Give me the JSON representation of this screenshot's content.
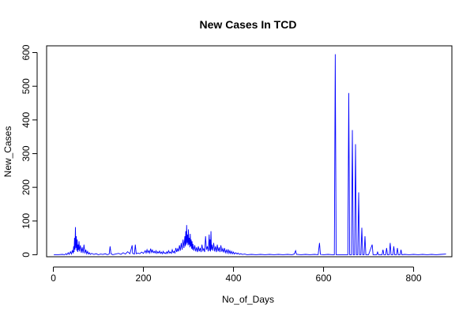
{
  "chart_data": {
    "type": "line",
    "title": "New Cases In TCD",
    "xlabel": "No_of_Days",
    "ylabel": "New_Cases",
    "xlim": [
      -15,
      885
    ],
    "ylim": [
      -6,
      620
    ],
    "x_ticks": [
      0,
      200,
      400,
      600,
      800
    ],
    "y_ticks": [
      0,
      100,
      200,
      300,
      400,
      500,
      600
    ],
    "x_tick_labels": [
      "0",
      "200",
      "400",
      "600",
      "800"
    ],
    "y_tick_labels": [
      "0",
      "100",
      "200",
      "300",
      "400",
      "500",
      "600"
    ],
    "grid": false,
    "legend": "none",
    "series": [
      {
        "color": "#0000ff",
        "points": [
          [
            1,
            0
          ],
          [
            10,
            0
          ],
          [
            20,
            1
          ],
          [
            25,
            0
          ],
          [
            28,
            3
          ],
          [
            30,
            0
          ],
          [
            33,
            6
          ],
          [
            35,
            1
          ],
          [
            38,
            9
          ],
          [
            40,
            2
          ],
          [
            42,
            12
          ],
          [
            44,
            4
          ],
          [
            45,
            25
          ],
          [
            46,
            8
          ],
          [
            47,
            50
          ],
          [
            48,
            15
          ],
          [
            49,
            82
          ],
          [
            50,
            20
          ],
          [
            51,
            55
          ],
          [
            52,
            12
          ],
          [
            53,
            45
          ],
          [
            54,
            8
          ],
          [
            55,
            30
          ],
          [
            56,
            14
          ],
          [
            57,
            40
          ],
          [
            58,
            10
          ],
          [
            60,
            28
          ],
          [
            62,
            6
          ],
          [
            64,
            22
          ],
          [
            66,
            5
          ],
          [
            68,
            30
          ],
          [
            70,
            4
          ],
          [
            72,
            15
          ],
          [
            74,
            3
          ],
          [
            76,
            10
          ],
          [
            78,
            2
          ],
          [
            80,
            6
          ],
          [
            82,
            1
          ],
          [
            85,
            4
          ],
          [
            90,
            1
          ],
          [
            95,
            3
          ],
          [
            100,
            0
          ],
          [
            105,
            2
          ],
          [
            110,
            1
          ],
          [
            115,
            3
          ],
          [
            120,
            0
          ],
          [
            124,
            2
          ],
          [
            126,
            25
          ],
          [
            128,
            3
          ],
          [
            132,
            0
          ],
          [
            138,
            2
          ],
          [
            145,
            4
          ],
          [
            150,
            1
          ],
          [
            155,
            6
          ],
          [
            160,
            2
          ],
          [
            165,
            9
          ],
          [
            170,
            3
          ],
          [
            175,
            28
          ],
          [
            176,
            4
          ],
          [
            180,
            2
          ],
          [
            182,
            30
          ],
          [
            184,
            3
          ],
          [
            188,
            5
          ],
          [
            192,
            3
          ],
          [
            196,
            8
          ],
          [
            200,
            4
          ],
          [
            204,
            12
          ],
          [
            206,
            5
          ],
          [
            208,
            15
          ],
          [
            210,
            6
          ],
          [
            212,
            12
          ],
          [
            214,
            5
          ],
          [
            216,
            18
          ],
          [
            218,
            7
          ],
          [
            220,
            14
          ],
          [
            222,
            6
          ],
          [
            224,
            10
          ],
          [
            226,
            5
          ],
          [
            228,
            12
          ],
          [
            230,
            4
          ],
          [
            232,
            9
          ],
          [
            234,
            5
          ],
          [
            236,
            11
          ],
          [
            238,
            4
          ],
          [
            240,
            8
          ],
          [
            242,
            3
          ],
          [
            244,
            10
          ],
          [
            246,
            4
          ],
          [
            248,
            6
          ],
          [
            250,
            3
          ],
          [
            252,
            9
          ],
          [
            254,
            4
          ],
          [
            256,
            12
          ],
          [
            258,
            5
          ],
          [
            260,
            8
          ],
          [
            262,
            4
          ],
          [
            264,
            15
          ],
          [
            266,
            6
          ],
          [
            268,
            10
          ],
          [
            270,
            5
          ],
          [
            272,
            20
          ],
          [
            274,
            8
          ],
          [
            276,
            18
          ],
          [
            278,
            10
          ],
          [
            280,
            28
          ],
          [
            282,
            12
          ],
          [
            284,
            35
          ],
          [
            286,
            15
          ],
          [
            288,
            45
          ],
          [
            290,
            20
          ],
          [
            292,
            55
          ],
          [
            293,
            25
          ],
          [
            294,
            70
          ],
          [
            295,
            30
          ],
          [
            296,
            88
          ],
          [
            297,
            35
          ],
          [
            298,
            60
          ],
          [
            299,
            28
          ],
          [
            300,
            75
          ],
          [
            301,
            30
          ],
          [
            302,
            50
          ],
          [
            303,
            22
          ],
          [
            304,
            62
          ],
          [
            305,
            25
          ],
          [
            306,
            45
          ],
          [
            307,
            18
          ],
          [
            308,
            40
          ],
          [
            309,
            15
          ],
          [
            310,
            32
          ],
          [
            312,
            12
          ],
          [
            314,
            28
          ],
          [
            316,
            10
          ],
          [
            318,
            22
          ],
          [
            320,
            8
          ],
          [
            322,
            25
          ],
          [
            324,
            10
          ],
          [
            326,
            20
          ],
          [
            328,
            8
          ],
          [
            330,
            30
          ],
          [
            332,
            12
          ],
          [
            334,
            18
          ],
          [
            336,
            8
          ],
          [
            338,
            55
          ],
          [
            340,
            15
          ],
          [
            342,
            25
          ],
          [
            344,
            10
          ],
          [
            346,
            60
          ],
          [
            347,
            12
          ],
          [
            348,
            45
          ],
          [
            349,
            10
          ],
          [
            350,
            70
          ],
          [
            351,
            15
          ],
          [
            352,
            30
          ],
          [
            354,
            12
          ],
          [
            356,
            35
          ],
          [
            358,
            10
          ],
          [
            360,
            25
          ],
          [
            362,
            8
          ],
          [
            364,
            30
          ],
          [
            366,
            10
          ],
          [
            368,
            22
          ],
          [
            370,
            8
          ],
          [
            372,
            28
          ],
          [
            374,
            9
          ],
          [
            376,
            18
          ],
          [
            378,
            7
          ],
          [
            380,
            20
          ],
          [
            382,
            6
          ],
          [
            384,
            14
          ],
          [
            386,
            5
          ],
          [
            388,
            16
          ],
          [
            390,
            4
          ],
          [
            392,
            12
          ],
          [
            394,
            3
          ],
          [
            396,
            10
          ],
          [
            398,
            3
          ],
          [
            400,
            8
          ],
          [
            402,
            2
          ],
          [
            405,
            6
          ],
          [
            408,
            2
          ],
          [
            410,
            5
          ],
          [
            413,
            1
          ],
          [
            416,
            3
          ],
          [
            420,
            1
          ],
          [
            425,
            2
          ],
          [
            430,
            0
          ],
          [
            440,
            1
          ],
          [
            450,
            0
          ],
          [
            460,
            1
          ],
          [
            470,
            0
          ],
          [
            480,
            1
          ],
          [
            490,
            0
          ],
          [
            500,
            1
          ],
          [
            510,
            0
          ],
          [
            520,
            1
          ],
          [
            530,
            0
          ],
          [
            535,
            2
          ],
          [
            538,
            12
          ],
          [
            540,
            1
          ],
          [
            550,
            0
          ],
          [
            560,
            1
          ],
          [
            570,
            0
          ],
          [
            580,
            1
          ],
          [
            588,
            0
          ],
          [
            591,
            35
          ],
          [
            593,
            1
          ],
          [
            600,
            0
          ],
          [
            610,
            1
          ],
          [
            620,
            0
          ],
          [
            624,
            0
          ],
          [
            626,
            595
          ],
          [
            628,
            0
          ],
          [
            640,
            0
          ],
          [
            650,
            0
          ],
          [
            654,
            0
          ],
          [
            656,
            480
          ],
          [
            658,
            0
          ],
          [
            662,
            0
          ],
          [
            664,
            370
          ],
          [
            666,
            0
          ],
          [
            669,
            0
          ],
          [
            671,
            328
          ],
          [
            673,
            0
          ],
          [
            676,
            0
          ],
          [
            678,
            185
          ],
          [
            680,
            0
          ],
          [
            683,
            0
          ],
          [
            685,
            80
          ],
          [
            687,
            0
          ],
          [
            690,
            0
          ],
          [
            692,
            55
          ],
          [
            694,
            0
          ],
          [
            700,
            0
          ],
          [
            708,
            30
          ],
          [
            710,
            0
          ],
          [
            718,
            0
          ],
          [
            720,
            8
          ],
          [
            722,
            0
          ],
          [
            730,
            0
          ],
          [
            732,
            15
          ],
          [
            734,
            0
          ],
          [
            738,
            0
          ],
          [
            740,
            20
          ],
          [
            742,
            0
          ],
          [
            746,
            0
          ],
          [
            748,
            35
          ],
          [
            750,
            0
          ],
          [
            754,
            0
          ],
          [
            756,
            25
          ],
          [
            758,
            0
          ],
          [
            762,
            0
          ],
          [
            764,
            20
          ],
          [
            766,
            0
          ],
          [
            770,
            0
          ],
          [
            772,
            15
          ],
          [
            774,
            0
          ],
          [
            780,
            1
          ],
          [
            790,
            0
          ],
          [
            800,
            1
          ],
          [
            810,
            0
          ],
          [
            820,
            1
          ],
          [
            830,
            0
          ],
          [
            840,
            1
          ],
          [
            850,
            0
          ],
          [
            860,
            1
          ],
          [
            872,
            2
          ]
        ]
      }
    ]
  }
}
